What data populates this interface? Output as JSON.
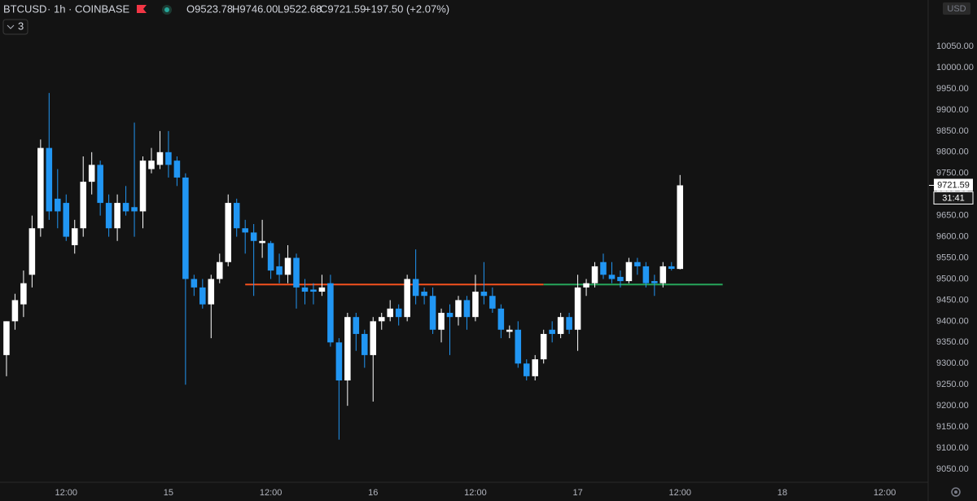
{
  "chart_data": {
    "type": "candlestick",
    "symbol": "BTCUSD",
    "interval": "1h",
    "exchange": "COINBASE",
    "header_ohlc": [
      "O9523.78",
      "H9746.00",
      "L9522.68",
      "C9721.59"
    ],
    "change": "+197.50 (+2.07%)",
    "indicator_count": 3,
    "currency": "USD",
    "last_price_label": "9721.59",
    "countdown": "31:41",
    "up_color": "#ffffff",
    "down_color": "#2196f3",
    "x": [
      0,
      1,
      2,
      3,
      4,
      5,
      6,
      7,
      8,
      9,
      10,
      11,
      12,
      13,
      14,
      15,
      16,
      17,
      18,
      19,
      20,
      21,
      22,
      23,
      24,
      25,
      26,
      27,
      28,
      29,
      30,
      31,
      32,
      33,
      34,
      35,
      36,
      37,
      38,
      39,
      40,
      41,
      42,
      43,
      44,
      45,
      46,
      47,
      48,
      49,
      50,
      51,
      52,
      53,
      54,
      55,
      56,
      57,
      58,
      59,
      60,
      61,
      62,
      63,
      64,
      65,
      66,
      67,
      68,
      69,
      70,
      71,
      72,
      73,
      74,
      75,
      76,
      77,
      78,
      79
    ],
    "open": [
      9320,
      9400,
      9440,
      9510,
      9620,
      9810,
      9690,
      9680,
      9580,
      9620,
      9730,
      9770,
      9680,
      9620,
      9680,
      9670,
      9660,
      9760,
      9770,
      9800,
      9780,
      9740,
      9500,
      9480,
      9440,
      9500,
      9540,
      9680,
      9620,
      9610,
      9585,
      9585,
      9530,
      9510,
      9550,
      9480,
      9475,
      9470,
      9490,
      9350,
      9260,
      9410,
      9370,
      9320,
      9400,
      9410,
      9430,
      9410,
      9500,
      9470,
      9460,
      9380,
      9420,
      9410,
      9450,
      9410,
      9470,
      9460,
      9430,
      9375,
      9380,
      9300,
      9270,
      9310,
      9380,
      9370,
      9410,
      9380,
      9480,
      9490,
      9540,
      9510,
      9505,
      9495,
      9540,
      9530,
      9495,
      9490,
      9530,
      9523.78
    ],
    "high": [
      9400,
      9465,
      9520,
      9650,
      9830,
      9940,
      9760,
      9700,
      9640,
      9790,
      9800,
      9780,
      9700,
      9700,
      9720,
      9870,
      9790,
      9810,
      9850,
      9850,
      9790,
      9750,
      9510,
      9500,
      9510,
      9560,
      9700,
      9690,
      9640,
      9630,
      9640,
      9590,
      9560,
      9580,
      9560,
      9500,
      9490,
      9510,
      9510,
      9360,
      9420,
      9420,
      9380,
      9410,
      9420,
      9450,
      9440,
      9510,
      9570,
      9480,
      9480,
      9430,
      9440,
      9460,
      9460,
      9510,
      9540,
      9480,
      9440,
      9390,
      9400,
      9310,
      9320,
      9380,
      9400,
      9420,
      9420,
      9510,
      9500,
      9540,
      9560,
      9540,
      9520,
      9550,
      9550,
      9540,
      9510,
      9540,
      9540,
      9746.0
    ],
    "low": [
      9270,
      9380,
      9410,
      9480,
      9600,
      9640,
      9620,
      9590,
      9560,
      9600,
      9700,
      9650,
      9600,
      9590,
      9650,
      9600,
      9620,
      9750,
      9760,
      9740,
      9720,
      9250,
      9460,
      9430,
      9360,
      9490,
      9530,
      9600,
      9560,
      9460,
      9550,
      9500,
      9490,
      9490,
      9430,
      9440,
      9440,
      9460,
      9340,
      9120,
      9200,
      9330,
      9290,
      9210,
      9380,
      9400,
      9390,
      9400,
      9440,
      9440,
      9370,
      9350,
      9320,
      9390,
      9380,
      9400,
      9440,
      9420,
      9360,
      9360,
      9290,
      9260,
      9260,
      9300,
      9350,
      9360,
      9370,
      9330,
      9460,
      9480,
      9500,
      9490,
      9480,
      9490,
      9510,
      9480,
      9460,
      9480,
      9520,
      9522.68
    ],
    "close": [
      9400,
      9450,
      9490,
      9620,
      9810,
      9660,
      9660,
      9600,
      9620,
      9730,
      9770,
      9680,
      9620,
      9680,
      9660,
      9660,
      9780,
      9780,
      9800,
      9770,
      9740,
      9500,
      9480,
      9440,
      9500,
      9540,
      9680,
      9620,
      9610,
      9590,
      9590,
      9520,
      9510,
      9550,
      9480,
      9470,
      9470,
      9480,
      9350,
      9260,
      9410,
      9370,
      9320,
      9400,
      9410,
      9430,
      9410,
      9500,
      9460,
      9460,
      9380,
      9420,
      9410,
      9450,
      9410,
      9470,
      9460,
      9430,
      9380,
      9380,
      9300,
      9270,
      9310,
      9370,
      9370,
      9410,
      9380,
      9480,
      9490,
      9530,
      9510,
      9500,
      9495,
      9540,
      9530,
      9490,
      9490,
      9530,
      9524,
      9721.59
    ],
    "levels": [
      {
        "value": 9487,
        "color": "#f4511e",
        "from": 28,
        "to": 63
      },
      {
        "value": 9487,
        "color": "#26a65b",
        "from": 63,
        "to": 84
      }
    ],
    "xlim": [
      -0.76,
      108.1
    ],
    "xticks": [
      {
        "value": 7,
        "label": "12:00"
      },
      {
        "value": 19,
        "label": "15"
      },
      {
        "value": 31,
        "label": "12:00"
      },
      {
        "value": 43,
        "label": "16"
      },
      {
        "value": 55,
        "label": "12:00"
      },
      {
        "value": 67,
        "label": "17"
      },
      {
        "value": 79,
        "label": "12:00"
      },
      {
        "value": 91,
        "label": "18"
      },
      {
        "value": 103,
        "label": "12:00"
      }
    ],
    "ylim": [
      9023,
      10160
    ],
    "yticks": [
      {
        "value": 9050,
        "label": "9050.00"
      },
      {
        "value": 9100,
        "label": "9100.00"
      },
      {
        "value": 9150,
        "label": "9150.00"
      },
      {
        "value": 9200,
        "label": "9200.00"
      },
      {
        "value": 9250,
        "label": "9250.00"
      },
      {
        "value": 9300,
        "label": "9300.00"
      },
      {
        "value": 9350,
        "label": "9350.00"
      },
      {
        "value": 9400,
        "label": "9400.00"
      },
      {
        "value": 9450,
        "label": "9450.00"
      },
      {
        "value": 9500,
        "label": "9500.00"
      },
      {
        "value": 9550,
        "label": "9550.00"
      },
      {
        "value": 9600,
        "label": "9600.00"
      },
      {
        "value": 9650,
        "label": "9650.00"
      },
      {
        "value": 9700,
        "label": "9700.00"
      },
      {
        "value": 9750,
        "label": "9750.00"
      },
      {
        "value": 9800,
        "label": "9800.00"
      },
      {
        "value": 9850,
        "label": "9850.00"
      },
      {
        "value": 9900,
        "label": "9900.00"
      },
      {
        "value": 9950,
        "label": "9950.00"
      },
      {
        "value": 10000,
        "label": "10000.00"
      },
      {
        "value": 10050,
        "label": "10050.00"
      }
    ]
  }
}
